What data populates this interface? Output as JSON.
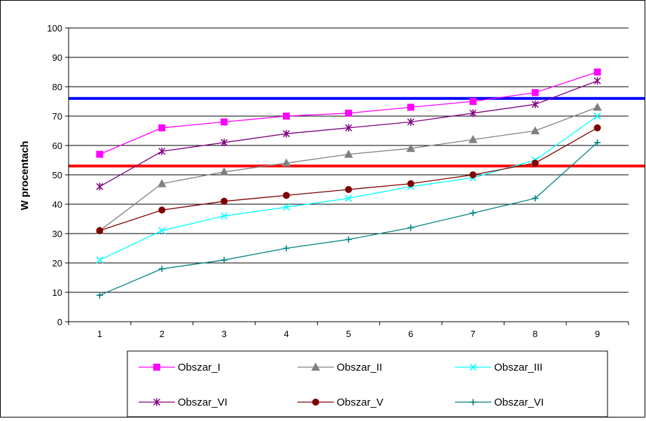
{
  "chart_data": {
    "type": "line",
    "title": "",
    "xlabel": "",
    "ylabel": "W procentach",
    "ylim": [
      0,
      100
    ],
    "yticks": [
      0,
      10,
      20,
      30,
      40,
      50,
      60,
      70,
      80,
      90,
      100
    ],
    "categories": [
      "1",
      "2",
      "3",
      "4",
      "5",
      "6",
      "7",
      "8",
      "9"
    ],
    "grid": true,
    "legend_position": "bottom",
    "series": [
      {
        "name": "Obszar_I",
        "color": "#ff00ff",
        "marker": "square",
        "values": [
          57,
          66,
          68,
          70,
          71,
          73,
          75,
          78,
          85
        ]
      },
      {
        "name": "Obszar_II",
        "color": "#808080",
        "marker": "triangle",
        "values": [
          31,
          47,
          51,
          54,
          57,
          59,
          62,
          65,
          73
        ]
      },
      {
        "name": "Obszar_III",
        "color": "#00ffff",
        "marker": "x",
        "values": [
          21,
          31,
          36,
          39,
          42,
          46,
          49,
          55,
          70
        ]
      },
      {
        "name": "Obszar_VI",
        "color": "#800080",
        "marker": "asterisk",
        "values": [
          46,
          58,
          61,
          64,
          66,
          68,
          71,
          74,
          82
        ]
      },
      {
        "name": "Obszar_V",
        "color": "#800000",
        "marker": "circle",
        "values": [
          31,
          38,
          41,
          43,
          45,
          47,
          50,
          54,
          66
        ]
      },
      {
        "name": "Obszar_VI",
        "color": "#008080",
        "marker": "plus",
        "values": [
          9,
          18,
          21,
          25,
          28,
          32,
          37,
          42,
          61
        ]
      }
    ],
    "reference_lines": [
      {
        "value": 76,
        "color": "#0000ff"
      },
      {
        "value": 53,
        "color": "#ff0000"
      }
    ]
  }
}
